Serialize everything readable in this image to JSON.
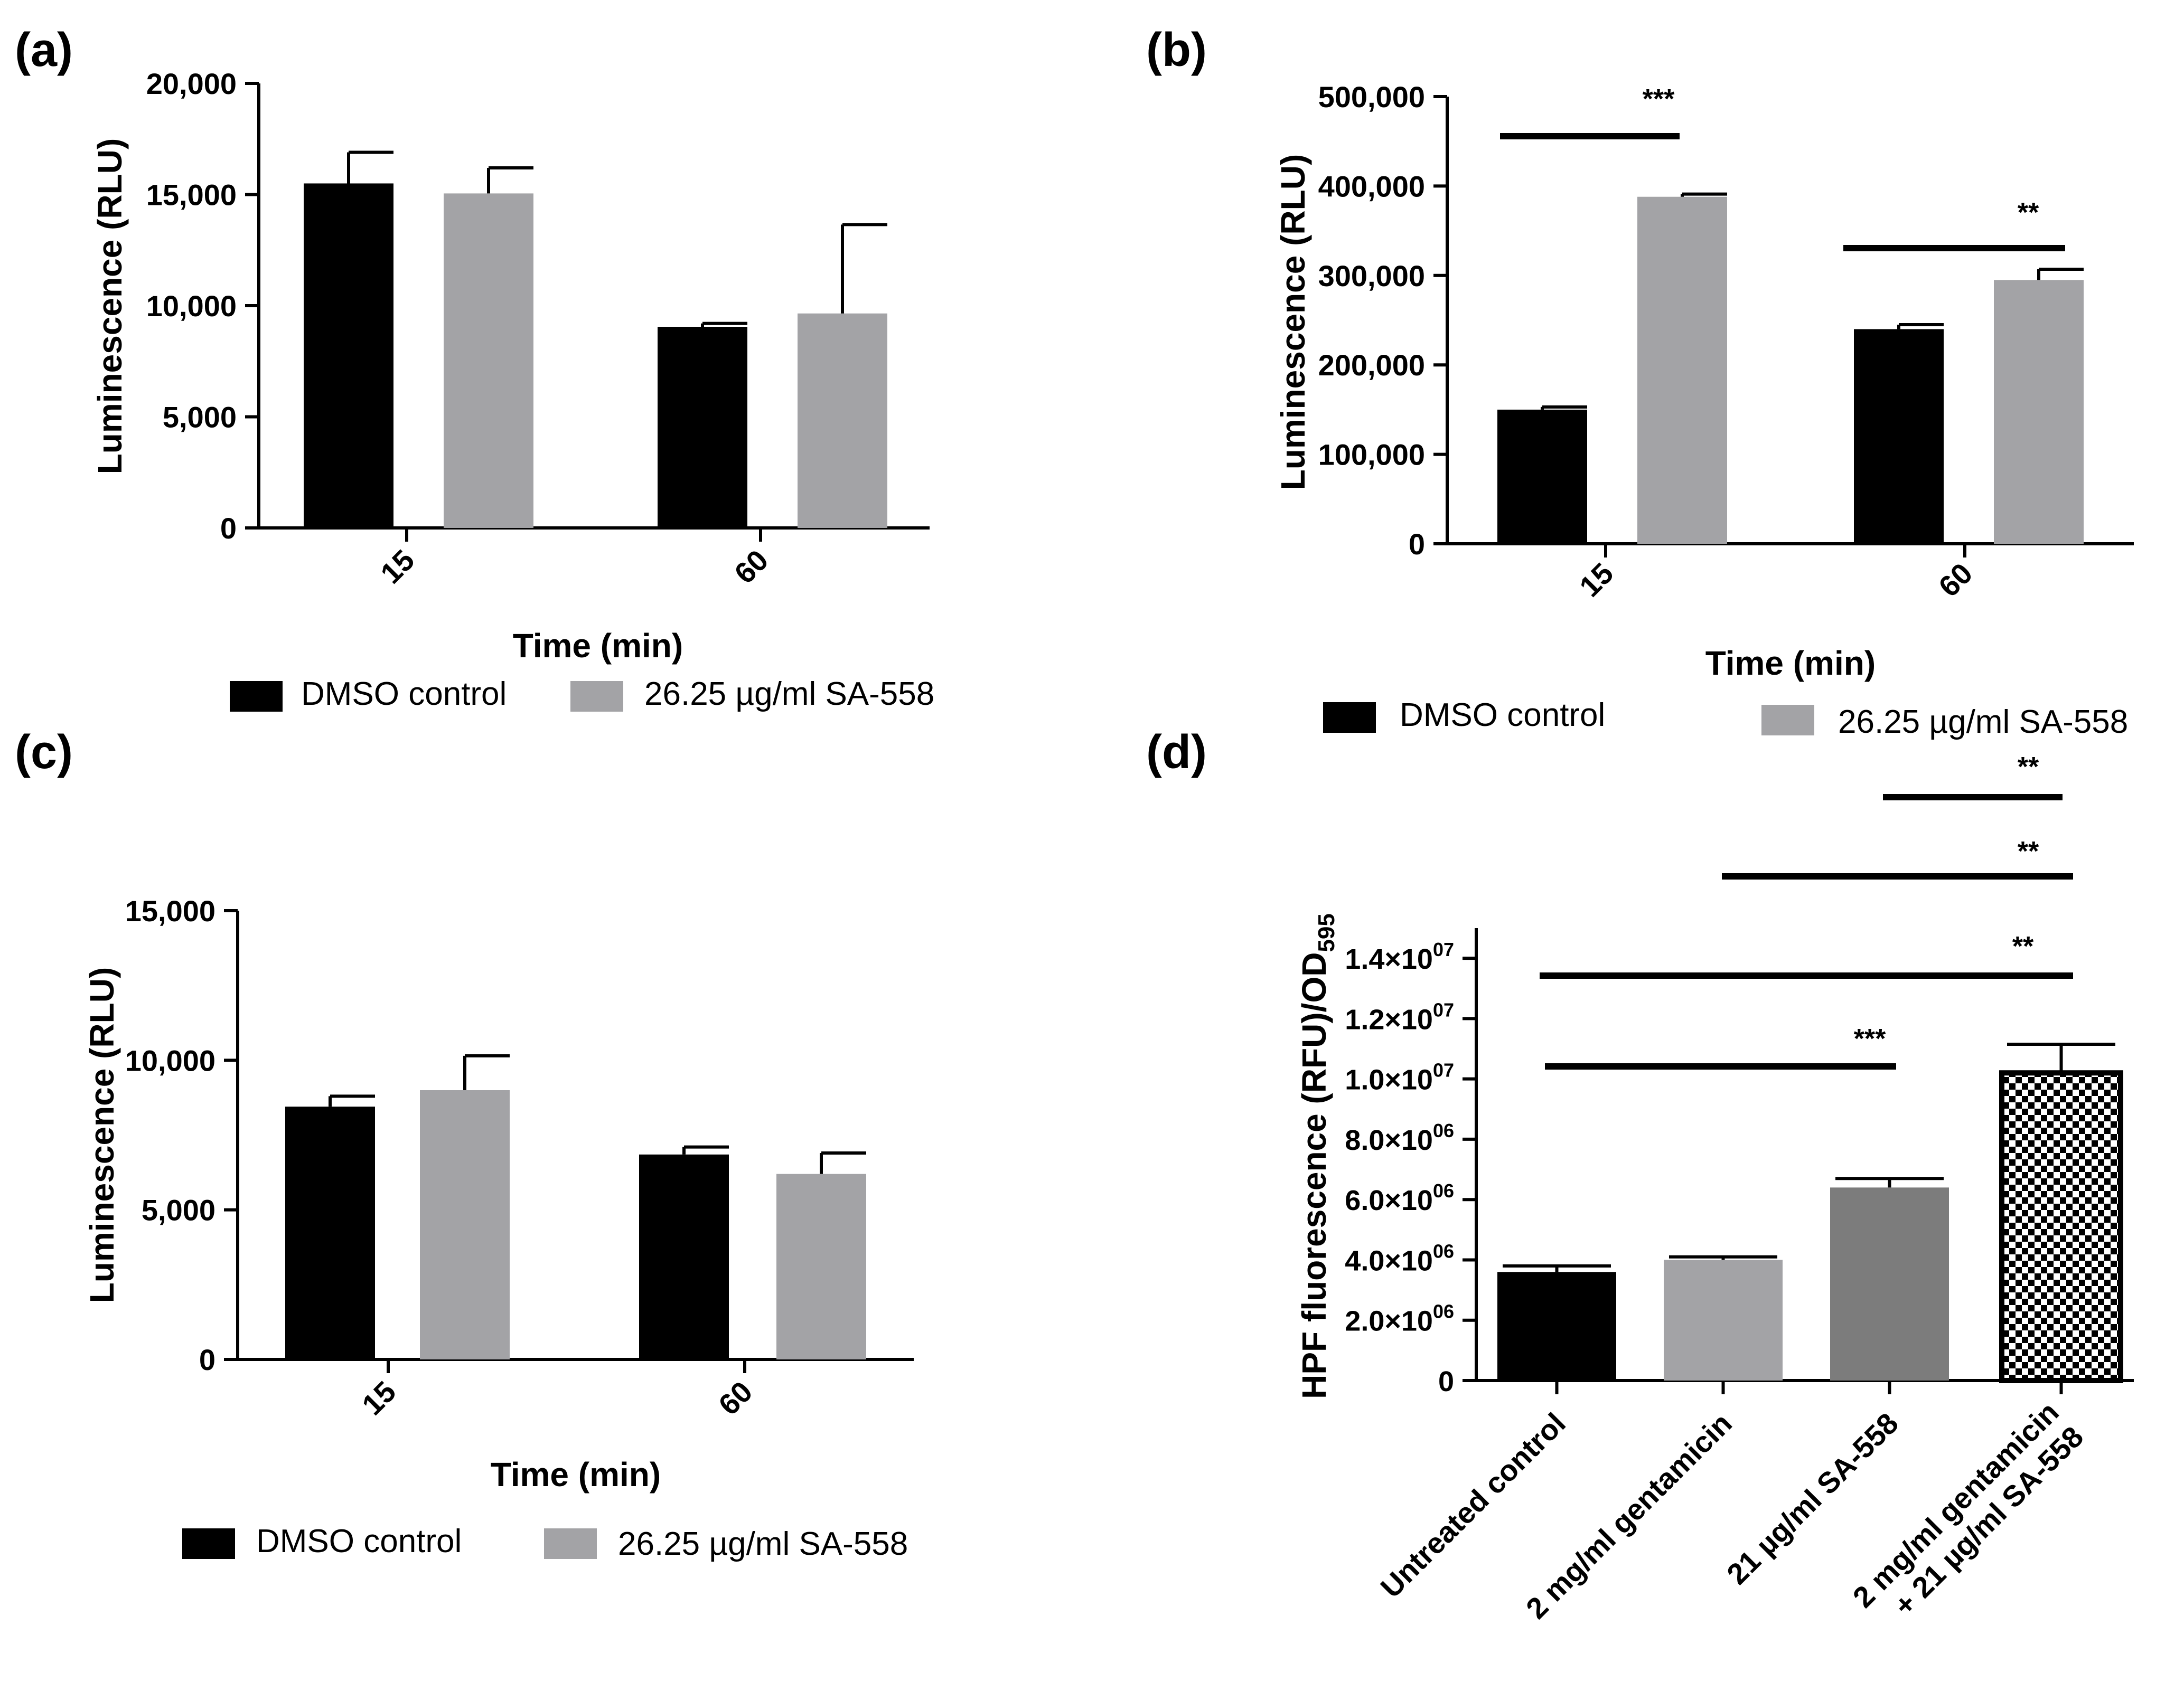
{
  "chart_data": [
    {
      "panel": "(a)",
      "type": "bar",
      "categories": [
        "15",
        "60"
      ],
      "series": [
        {
          "name": "DMSO control",
          "color": "#000000",
          "values": [
            15500,
            9050
          ],
          "errors": [
            1400,
            150
          ]
        },
        {
          "name": "26.25 µg/ml SA-558",
          "color": "#a3a3a6",
          "values": [
            15050,
            9650
          ],
          "errors": [
            1150,
            4000
          ]
        }
      ],
      "xlabel": "Time (min)",
      "ylabel": "Luminescence (RLU)",
      "ylim": [
        0,
        20000
      ],
      "yticks": [
        0,
        5000,
        10000,
        15000,
        20000
      ],
      "ytick_labels": [
        "0",
        "5,000",
        "10,000",
        "15,000",
        "20,000"
      ],
      "significance": []
    },
    {
      "panel": "(b)",
      "type": "bar",
      "categories": [
        "15",
        "60"
      ],
      "series": [
        {
          "name": "DMSO control",
          "color": "#000000",
          "values": [
            150000,
            240000
          ],
          "errors": [
            3000,
            5000
          ]
        },
        {
          "name": "26.25 µg/ml SA-558",
          "color": "#a3a3a6",
          "values": [
            388000,
            295000
          ],
          "errors": [
            3000,
            12000
          ]
        }
      ],
      "xlabel": "Time (min)",
      "ylabel": "Luminescence (RLU)",
      "ylim": [
        0,
        500000
      ],
      "yticks": [
        0,
        100000,
        200000,
        300000,
        400000,
        500000
      ],
      "ytick_labels": [
        "0",
        "100,000",
        "200,000",
        "300,000",
        "400,000",
        "500,000"
      ],
      "significance": [
        {
          "label": "***",
          "from": "15 DMSO control",
          "to": "15 26.25 µg/ml SA-558"
        },
        {
          "label": "**",
          "from": "60 DMSO control",
          "to": "60 26.25 µg/ml SA-558"
        }
      ]
    },
    {
      "panel": "(c)",
      "type": "bar",
      "categories": [
        "15",
        "60"
      ],
      "series": [
        {
          "name": "DMSO control",
          "color": "#000000",
          "values": [
            8450,
            6850
          ],
          "errors": [
            350,
            250
          ]
        },
        {
          "name": "26.25 µg/ml SA-558",
          "color": "#a3a3a6",
          "values": [
            9000,
            6200
          ],
          "errors": [
            1150,
            700
          ]
        }
      ],
      "xlabel": "Time (min)",
      "ylabel": "Luminescence (RLU)",
      "ylim": [
        0,
        15000
      ],
      "yticks": [
        0,
        5000,
        10000,
        15000
      ],
      "ytick_labels": [
        "0",
        "5,000",
        "10,000",
        "15,000"
      ],
      "significance": []
    },
    {
      "panel": "(d)",
      "type": "bar",
      "categories": [
        "Untreated control",
        "2 mg/ml gentamicin",
        "21 µg/ml SA-558",
        "2 mg/ml gentamicin + 21 µg/ml SA-558"
      ],
      "category_lines": [
        [
          "Untreated control"
        ],
        [
          "2 mg/ml gentamicin"
        ],
        [
          "21 µg/ml SA-558"
        ],
        [
          "2 mg/ml gentamicin",
          "+ 21 µg/ml SA-558"
        ]
      ],
      "values": [
        3600000,
        4000000,
        6400000,
        10200000
      ],
      "errors": [
        200000,
        100000,
        300000,
        950000
      ],
      "colors": [
        "#000000",
        "#a3a3a6",
        "#7c7c7c",
        "checker"
      ],
      "xlabel": "",
      "ylabel": "HPF fluorescence (RFU)/OD",
      "ylabel_sub": "595",
      "ylim": [
        0,
        15000000
      ],
      "yticks": [
        0,
        2000000,
        4000000,
        6000000,
        8000000,
        10000000,
        12000000,
        14000000
      ],
      "ytick_labels": [
        {
          "base": "0",
          "exp": ""
        },
        {
          "base": "2.0×10",
          "exp": "06"
        },
        {
          "base": "4.0×10",
          "exp": "06"
        },
        {
          "base": "6.0×10",
          "exp": "06"
        },
        {
          "base": "8.0×10",
          "exp": "06"
        },
        {
          "base": "1.0×10",
          "exp": "07"
        },
        {
          "base": "1.2×10",
          "exp": "07"
        },
        {
          "base": "1.4×10",
          "exp": "07"
        }
      ],
      "significance": [
        {
          "label": "**",
          "from": "21 µg/ml SA-558",
          "to": "2 mg/ml gentamicin + 21 µg/ml SA-558"
        },
        {
          "label": "**",
          "from": "2 mg/ml gentamicin",
          "to": "2 mg/ml gentamicin + 21 µg/ml SA-558"
        },
        {
          "label": "**",
          "from": "Untreated control",
          "to": "2 mg/ml gentamicin + 21 µg/ml SA-558"
        },
        {
          "label": "***",
          "from": "Untreated control",
          "to": "21 µg/ml SA-558"
        }
      ]
    }
  ]
}
